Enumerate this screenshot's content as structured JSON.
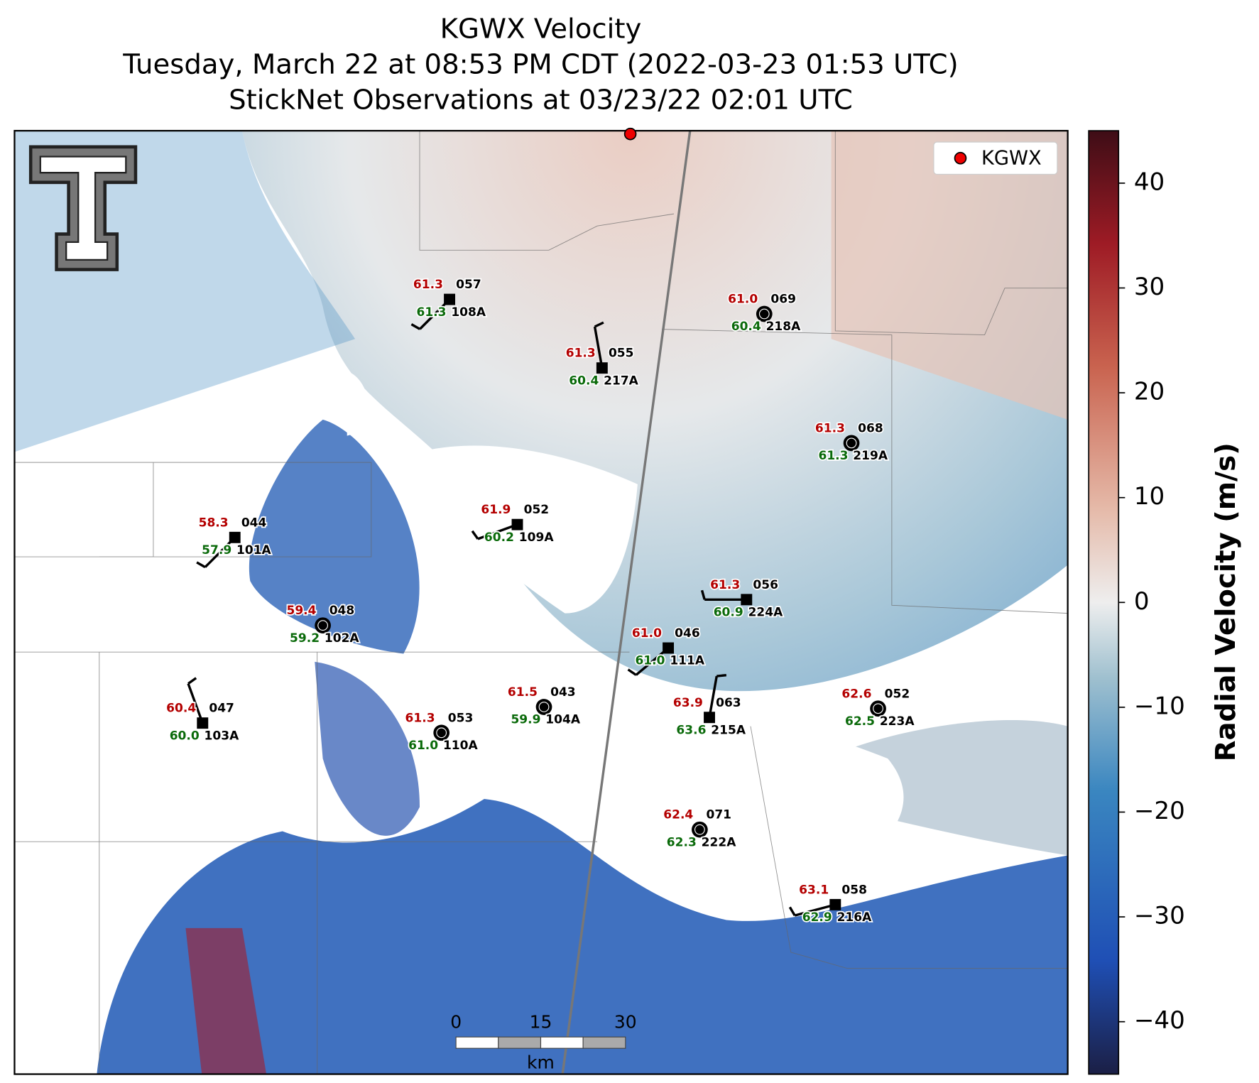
{
  "header": {
    "title_lines": [
      "KGWX Velocity",
      "Tuesday, March 22 at 08:53 PM CDT (2022-03-23 01:53 UTC)",
      "StickNet Observations at 03/23/22 02:01 UTC"
    ]
  },
  "legend": {
    "label": "KGWX"
  },
  "colorbar": {
    "label": "Radial Velocity (m/s)",
    "lim": [
      -45,
      45
    ],
    "ticks": [
      {
        "value": -40,
        "label": "−40"
      },
      {
        "value": -30,
        "label": "−30"
      },
      {
        "value": -20,
        "label": "−20"
      },
      {
        "value": -10,
        "label": "−10"
      },
      0,
      10,
      20,
      30,
      40
    ]
  },
  "scale_bar": {
    "ticks": [
      0,
      15,
      30
    ],
    "unit": "km"
  },
  "stations": [
    {
      "temp": "61.3",
      "code": "057",
      "dew": "61.3",
      "id": "108A"
    },
    {
      "temp": "61.3",
      "code": "055",
      "dew": "60.4",
      "id": "217A"
    },
    {
      "temp": "61.0",
      "code": "069",
      "dew": "60.4",
      "id": "218A"
    },
    {
      "temp": "61.3",
      "code": "068",
      "dew": "61.3",
      "id": "219A"
    },
    {
      "temp": "61.9",
      "code": "052",
      "dew": "60.2",
      "id": "109A"
    },
    {
      "temp": "58.3",
      "code": "044",
      "dew": "57.9",
      "id": "101A"
    },
    {
      "temp": "61.3",
      "code": "056",
      "dew": "60.9",
      "id": "224A"
    },
    {
      "temp": "59.4",
      "code": "048",
      "dew": "59.2",
      "id": "102A"
    },
    {
      "temp": "61.0",
      "code": "046",
      "dew": "61.0",
      "id": "111A"
    },
    {
      "temp": "61.5",
      "code": "043",
      "dew": "59.9",
      "id": "104A"
    },
    {
      "temp": "63.9",
      "code": "063",
      "dew": "63.6",
      "id": "215A"
    },
    {
      "temp": "62.6",
      "code": "052",
      "dew": "62.5",
      "id": "223A"
    },
    {
      "temp": "60.4",
      "code": "047",
      "dew": "60.0",
      "id": "103A"
    },
    {
      "temp": "61.3",
      "code": "053",
      "dew": "61.0",
      "id": "110A"
    },
    {
      "temp": "62.4",
      "code": "071",
      "dew": "62.3",
      "id": "222A"
    },
    {
      "temp": "63.1",
      "code": "058",
      "dew": "62.9",
      "id": "216A"
    }
  ]
}
